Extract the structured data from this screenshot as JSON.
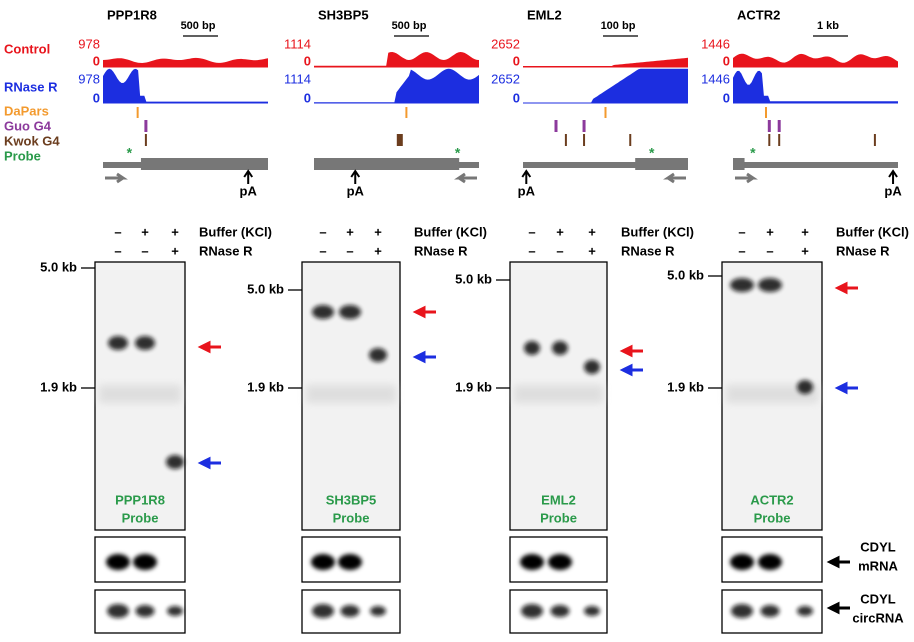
{
  "tracks": {
    "labels": [
      "Control",
      "RNase R",
      "DaPars",
      "Guo G4",
      "Kwok G4",
      "Probe"
    ]
  },
  "genes": [
    {
      "name": "PPP1R8",
      "scale": "500 bp",
      "control_max": 978,
      "control_min": 0,
      "rnase_max": 978,
      "rnase_min": 0,
      "polya": "pA",
      "probe": "*"
    },
    {
      "name": "SH3BP5",
      "scale": "500 bp",
      "control_max": 1114,
      "control_min": 0,
      "rnase_max": 1114,
      "rnase_min": 0,
      "polya": "pA",
      "probe": "*"
    },
    {
      "name": "EML2",
      "scale": "100 bp",
      "control_max": 2652,
      "control_min": 0,
      "rnase_max": 2652,
      "rnase_min": 0,
      "polya": "pA",
      "probe": "*"
    },
    {
      "name": "ACTR2",
      "scale": "1 kb",
      "control_max": 1446,
      "control_min": 0,
      "rnase_max": 1446,
      "rnase_min": 0,
      "polya": "pA",
      "probe": "*"
    }
  ],
  "treatments": {
    "buffer": {
      "label": "Buffer (KCl)",
      "lanes": [
        "–",
        "+",
        "+"
      ]
    },
    "rnase": {
      "label": "RNase R",
      "lanes": [
        "–",
        "–",
        "+"
      ]
    }
  },
  "markers": [
    "5.0 kb",
    "1.9 kb"
  ],
  "loading": [
    [
      "CDYL",
      "mRNA"
    ],
    [
      "CDYL",
      "circRNA"
    ]
  ]
}
